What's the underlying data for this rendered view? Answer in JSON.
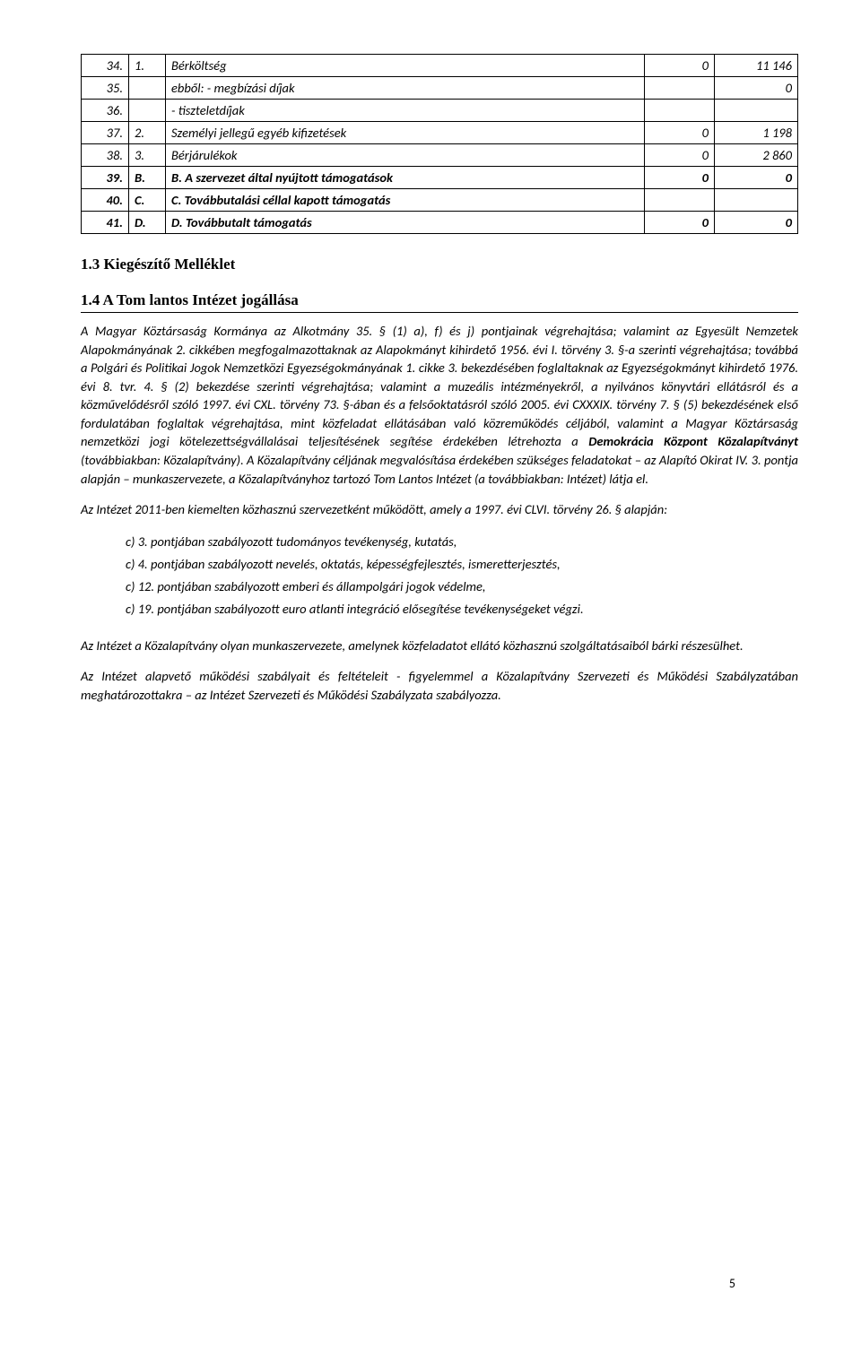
{
  "table": {
    "cols": [
      "num",
      "code",
      "label",
      "val",
      "val2"
    ],
    "rows": [
      {
        "num": "34.",
        "code": "1.",
        "label": "Bérköltség",
        "val": "0",
        "val2": "11 146",
        "bold": false
      },
      {
        "num": "35.",
        "code": "",
        "label": "ebből: - megbízási díjak",
        "val": "",
        "val2": "0",
        "bold": false
      },
      {
        "num": "36.",
        "code": "",
        "label": "- tiszteletdíjak",
        "val": "",
        "val2": "",
        "bold": false
      },
      {
        "num": "37.",
        "code": "2.",
        "label": "Személyi jellegű egyéb kifizetések",
        "val": "0",
        "val2": "1 198",
        "bold": false
      },
      {
        "num": "38.",
        "code": "3.",
        "label": "Bérjárulékok",
        "val": "0",
        "val2": "2 860",
        "bold": false
      },
      {
        "num": "39.",
        "code": "B.",
        "label": "B. A szervezet által nyújtott támogatások",
        "val": "0",
        "val2": "0",
        "bold": true
      },
      {
        "num": "40.",
        "code": "C.",
        "label": "C. Továbbutalási céllal kapott támogatás",
        "val": "",
        "val2": "",
        "bold": true
      },
      {
        "num": "41.",
        "code": "D.",
        "label": "D. Továbbutalt támogatás",
        "val": "0",
        "val2": "0",
        "bold": true
      }
    ]
  },
  "headings": {
    "h1": "1.3   Kiegészítő Melléklet",
    "h2": "1.4   A Tom lantos Intézet jogállása"
  },
  "paragraphs": {
    "p1_a": "A Magyar Köztársaság Kormánya az Alkotmány 35. § (1) a), f) és j) pontjainak végrehajtása; valamint az Egyesült Nemzetek Alapokmányának 2. cikkében megfogalmazottaknak az Alapokmányt kihirdető 1956. évi I. törvény 3. §-a szerinti végrehajtása; továbbá a Polgári és Politikai Jogok Nemzetközi Egyezségokmányának 1. cikke 3. bekezdésében foglaltaknak az Egyezségokmányt kihirdető 1976. évi 8. tvr. 4. § (2) bekezdése szerinti végrehajtása; valamint a muzeális intézményekről, a nyilvános könyvtári ellátásról és a közművelődésről szóló 1997. évi CXL. törvény 73. §-ában és a felsőoktatásról szóló 2005. évi CXXXIX. törvény 7. § (5) bekezdésének első fordulatában foglaltak végrehajtása, mint közfeladat ellátásában való közreműködés céljából, valamint a Magyar Köztársaság nemzetközi jogi kötelezettségvállalásai teljesítésének segítése érdekében létrehozta a ",
    "p1_bold": "Demokrácia Központ Közalapítványt",
    "p1_b": " (továbbiakban: Közalapítvány). A Közalapítvány céljának megvalósítása érdekében szükséges feladatokat – az Alapító Okirat IV. 3. pontja alapján – munkaszervezete, a Közalapítványhoz tartozó Tom Lantos Intézet (a továbbiakban: Intézet) látja el.",
    "p2": "Az Intézet 2011-ben kiemelten közhasznú szervezetként működött, amely a 1997. évi CLVI. törvény 26. § alapján:",
    "list": [
      "c) 3. pontjában szabályozott tudományos tevékenység, kutatás,",
      "c) 4. pontjában szabályozott nevelés, oktatás, képességfejlesztés, ismeretterjesztés,",
      "c) 12. pontjában szabályozott emberi és állampolgári jogok védelme,",
      "c) 19. pontjában szabályozott euro atlanti integráció elősegítése tevékenységeket végzi."
    ],
    "p3": "Az Intézet a Közalapítvány olyan munkaszervezete, amelynek közfeladatot ellátó közhasznú szolgáltatásaiból bárki részesülhet.",
    "p4": "Az Intézet alapvető működési szabályait és feltételeit - figyelemmel a Közalapítvány Szervezeti és Működési Szabályzatában meghatározottakra – az Intézet Szervezeti és Működési Szabályzata szabályozza."
  },
  "pagenum": "5"
}
